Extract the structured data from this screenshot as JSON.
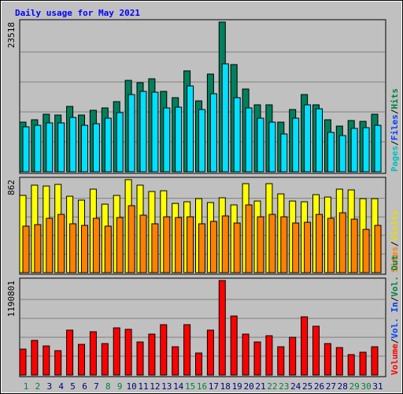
{
  "chart_data": {
    "type": "bar",
    "title": "Daily usage for May 2021",
    "categories": [
      "1",
      "2",
      "3",
      "4",
      "5",
      "6",
      "7",
      "8",
      "9",
      "10",
      "11",
      "12",
      "13",
      "14",
      "15",
      "16",
      "17",
      "18",
      "19",
      "20",
      "21",
      "22",
      "23",
      "24",
      "25",
      "26",
      "27",
      "28",
      "29",
      "30",
      "31"
    ],
    "category_colors": [
      "#008040",
      "#008040",
      "#000080",
      "#000080",
      "#000080",
      "#000080",
      "#000080",
      "#008040",
      "#008040",
      "#000080",
      "#000080",
      "#000080",
      "#000080",
      "#000080",
      "#008040",
      "#008040",
      "#000080",
      "#000080",
      "#000080",
      "#000080",
      "#000080",
      "#008040",
      "#008040",
      "#000080",
      "#000080",
      "#000080",
      "#000080",
      "#000080",
      "#008040",
      "#008040",
      "#000080"
    ],
    "separator": "/",
    "grid": true,
    "panels": [
      {
        "ylim": [
          0,
          23518
        ],
        "yticks": [
          23518
        ],
        "legend": [
          {
            "name": "Pages",
            "color": "#00c0c0"
          },
          {
            "name": "Files",
            "color": "#0040ff"
          },
          {
            "name": "Hits",
            "color": "#008040"
          }
        ],
        "series": [
          {
            "color": "#00805c",
            "values": [
              7800,
              8170,
              9040,
              8910,
              10270,
              8910,
              9660,
              10030,
              11020,
              14360,
              13990,
              14610,
              12630,
              11640,
              15850,
              11140,
              15350,
              23518,
              16840,
              13000,
              10520,
              10520,
              7800,
              9780,
              12130,
              10520,
              8170,
              7180,
              8050,
              7920,
              9040
            ]
          },
          {
            "color": "#00e0ff",
            "values": [
              7060,
              7300,
              7680,
              7680,
              8540,
              7300,
              7550,
              8420,
              9290,
              12130,
              12630,
              12500,
              10030,
              10150,
              13490,
              9780,
              12260,
              16960,
              11640,
              10030,
              8420,
              7800,
              5940,
              8420,
              10520,
              9900,
              6190,
              5690,
              6810,
              6930,
              7300
            ]
          }
        ]
      },
      {
        "ylim": [
          0,
          862
        ],
        "yticks": [
          862
        ],
        "legend": [
          {
            "name": "Sites",
            "color": "#ff8000"
          },
          {
            "name": "Visits",
            "color": "#e0e000"
          }
        ],
        "series": [
          {
            "color": "#ffff00",
            "values": [
              716,
              811,
              803,
              818,
              708,
              672,
              774,
              635,
              716,
              862,
              811,
              752,
              759,
              642,
              657,
              686,
              650,
              694,
              628,
              825,
              664,
              825,
              730,
              664,
              657,
              723,
              701,
              774,
              767,
              686,
              686
            ]
          },
          {
            "color": "#ff8000",
            "values": [
              431,
              445,
              504,
              540,
              453,
              438,
              504,
              431,
              511,
              621,
              533,
              453,
              518,
              511,
              518,
              453,
              475,
              526,
              460,
              628,
              518,
              540,
              518,
              460,
              467,
              540,
              504,
              555,
              496,
              401,
              438
            ]
          }
        ]
      },
      {
        "ylim": [
          0,
          1190801
        ],
        "yticks": [
          1190801
        ],
        "legend": [
          {
            "name": "Volume",
            "color": "#ff0000"
          },
          {
            "name": "Vol. In",
            "color": "#0040ff"
          },
          {
            "name": "Vol. Out",
            "color": "#008040"
          }
        ],
        "series": [
          {
            "color": "#ff0000",
            "values": [
              327000,
              437000,
              367000,
              308000,
              566000,
              387000,
              546000,
              397000,
              595000,
              576000,
              417000,
              516000,
              635000,
              357000,
              635000,
              278000,
              566000,
              1190801,
              744000,
              516000,
              417000,
              496000,
              357000,
              476000,
              734000,
              615000,
              397000,
              347000,
              258000,
              288000,
              357000
            ]
          }
        ]
      }
    ]
  }
}
